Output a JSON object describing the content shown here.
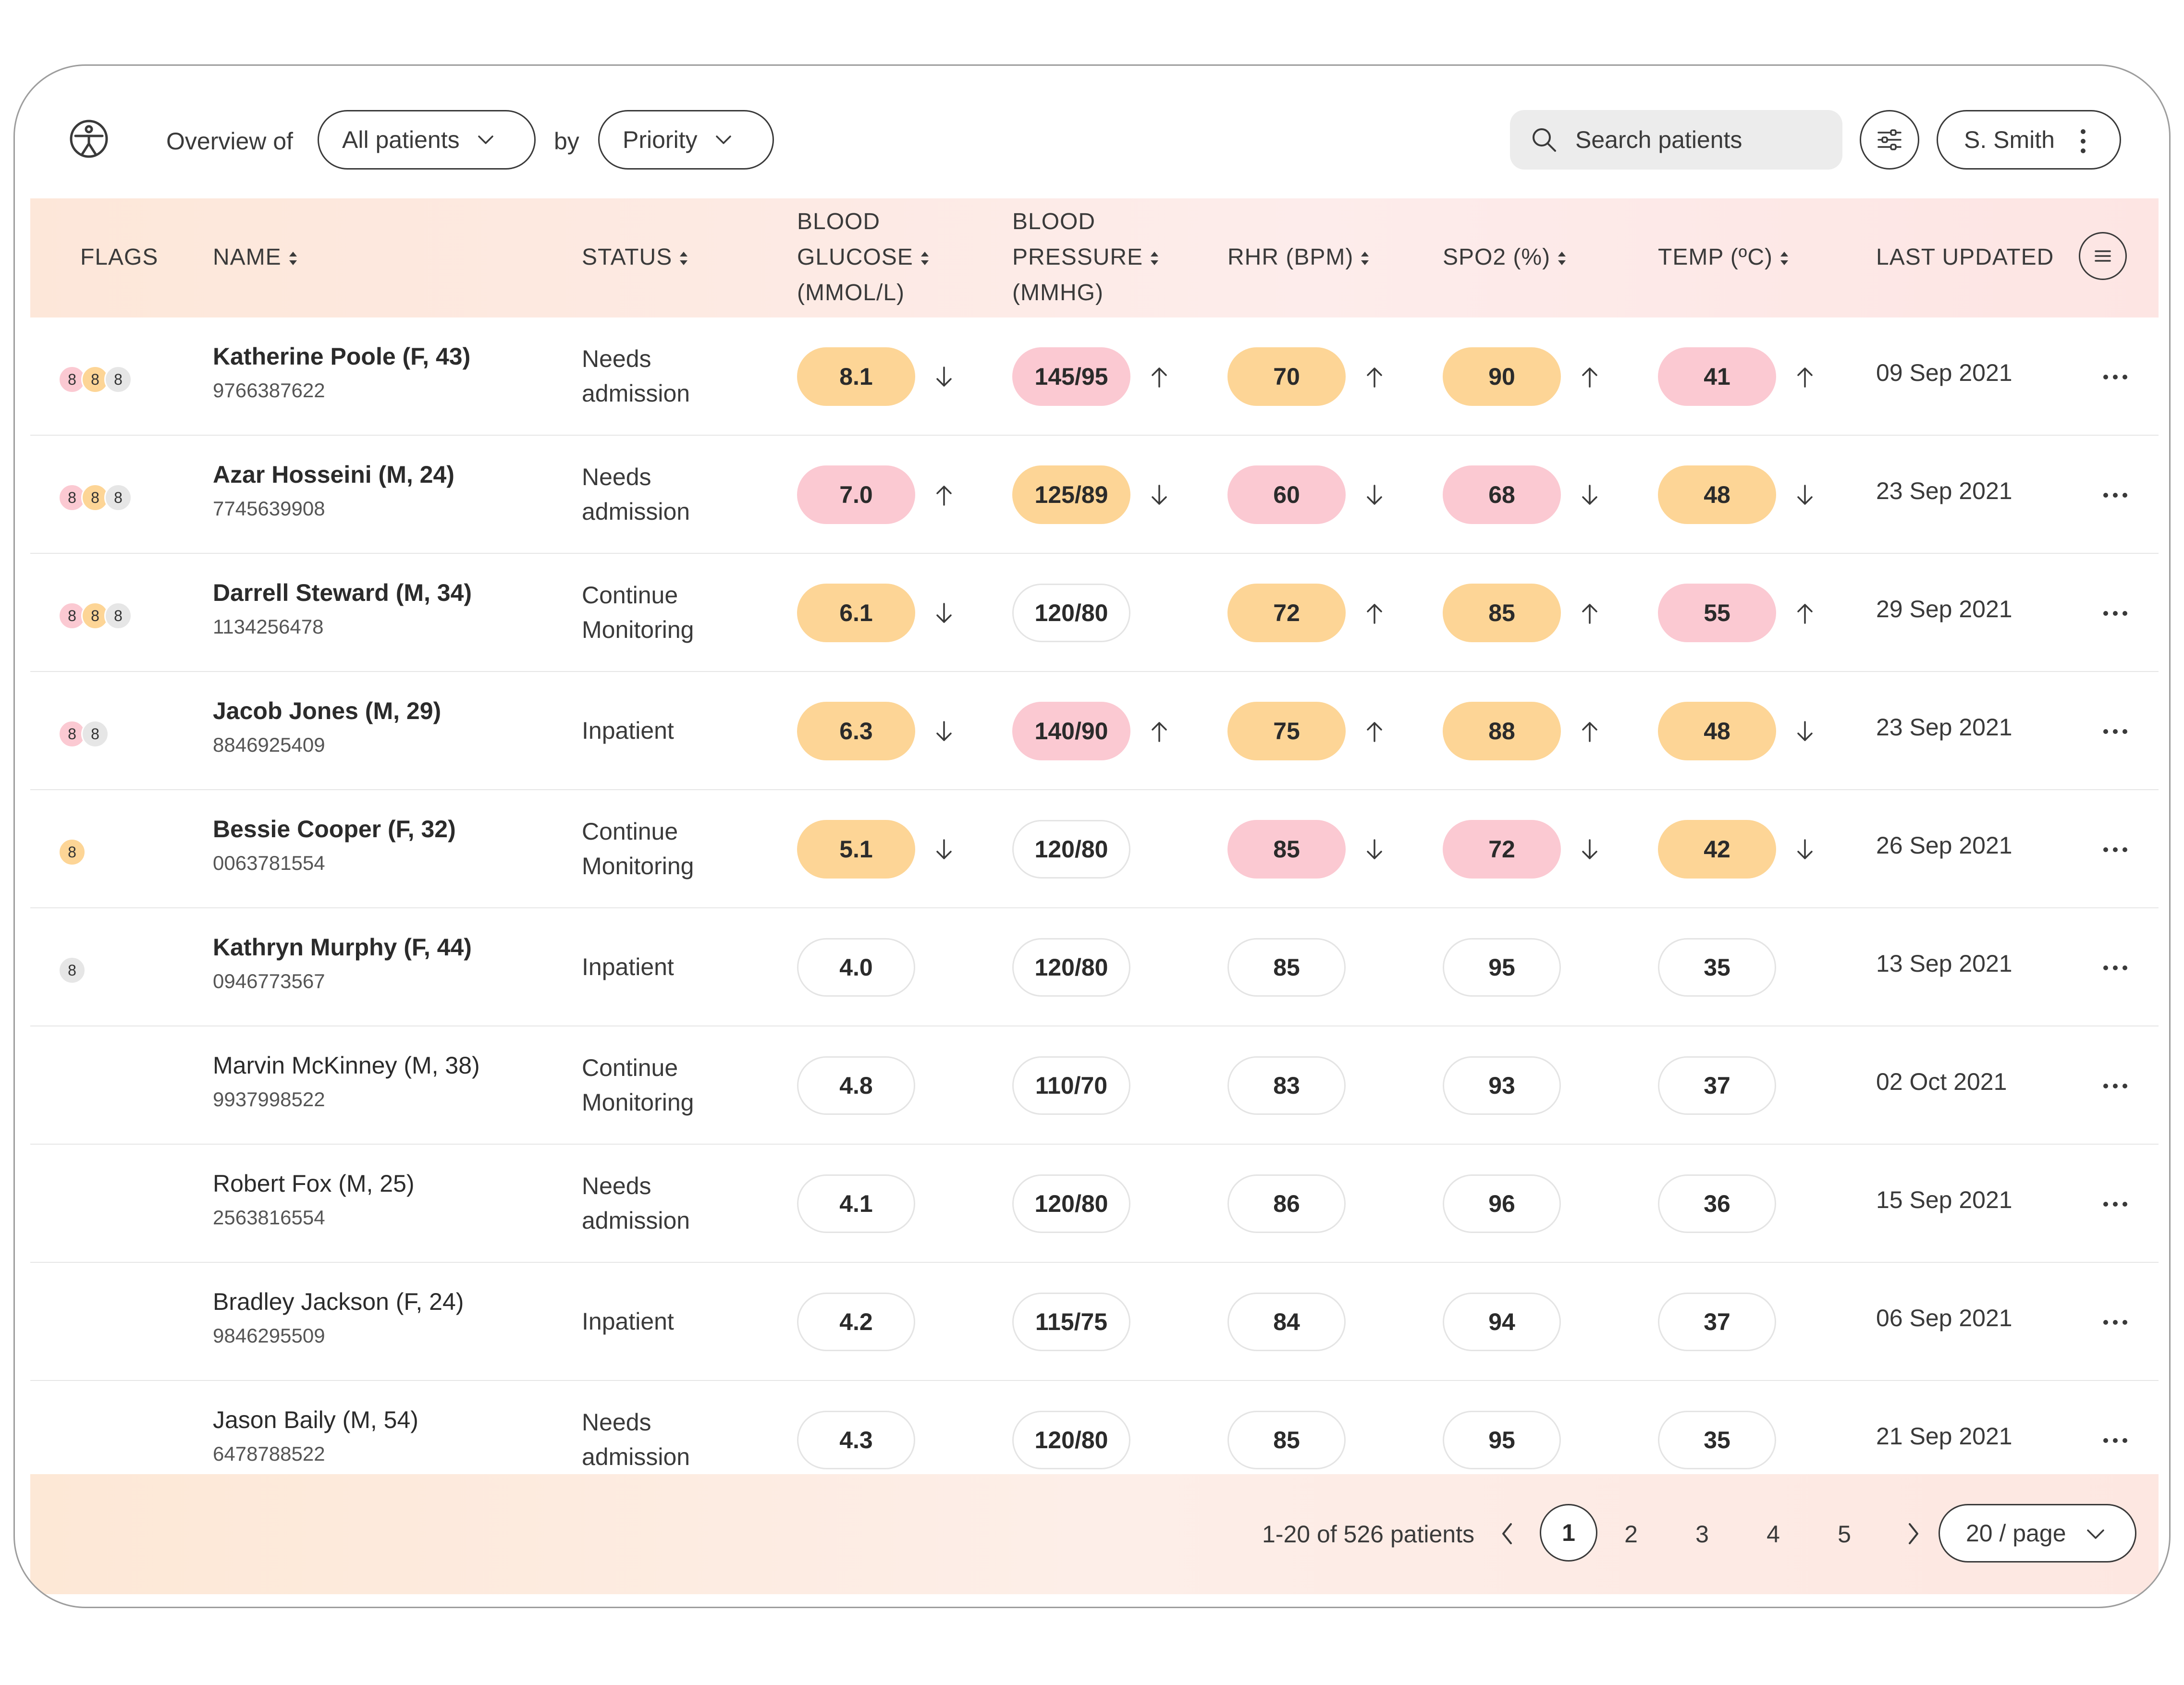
{
  "header": {
    "overview_label": "Overview of",
    "patients_filter": "All patients",
    "by_label": "by",
    "sort_filter": "Priority",
    "search_placeholder": "Search patients",
    "user_name": "S. Smith"
  },
  "columns": {
    "flags": "FLAGS",
    "name": "NAME",
    "status": "STATUS",
    "glucose": [
      "BLOOD",
      "GLUCOSE",
      "(MMOL/L)"
    ],
    "pressure": [
      "BLOOD",
      "PRESSURE",
      "(MMHG)"
    ],
    "rhr": "RHR (BPM)",
    "spo2": "SPO2 (%)",
    "temp": "TEMP (ºC)",
    "updated": "LAST UPDATED"
  },
  "rows": [
    {
      "flags": [
        {
          "color": "pink",
          "n": "8"
        },
        {
          "color": "yellow",
          "n": "8"
        },
        {
          "color": "grey",
          "n": "8"
        }
      ],
      "name": "Katherine Poole (F, 43)",
      "bold": true,
      "id": "9766387622",
      "status": [
        "Needs",
        "admission"
      ],
      "glucose": {
        "v": "8.1",
        "c": "yellow",
        "t": "down"
      },
      "bp": {
        "v": "145/95",
        "c": "pink",
        "t": "up"
      },
      "rhr": {
        "v": "70",
        "c": "yellow",
        "t": "up"
      },
      "spo2": {
        "v": "90",
        "c": "yellow",
        "t": "up"
      },
      "temp": {
        "v": "41",
        "c": "pink",
        "t": "up"
      },
      "updated": "09 Sep 2021"
    },
    {
      "flags": [
        {
          "color": "pink",
          "n": "8"
        },
        {
          "color": "yellow",
          "n": "8"
        },
        {
          "color": "grey",
          "n": "8"
        }
      ],
      "name": "Azar Hosseini (M, 24)",
      "bold": true,
      "id": "7745639908",
      "status": [
        "Needs",
        "admission"
      ],
      "glucose": {
        "v": "7.0",
        "c": "pink",
        "t": "up"
      },
      "bp": {
        "v": "125/89",
        "c": "yellow",
        "t": "down"
      },
      "rhr": {
        "v": "60",
        "c": "pink",
        "t": "down"
      },
      "spo2": {
        "v": "68",
        "c": "pink",
        "t": "down"
      },
      "temp": {
        "v": "48",
        "c": "yellow",
        "t": "down"
      },
      "updated": "23 Sep 2021"
    },
    {
      "flags": [
        {
          "color": "pink",
          "n": "8"
        },
        {
          "color": "yellow",
          "n": "8"
        },
        {
          "color": "grey",
          "n": "8"
        }
      ],
      "name": "Darrell Steward (M, 34)",
      "bold": true,
      "id": "1134256478",
      "status": [
        "Continue",
        "Monitoring"
      ],
      "glucose": {
        "v": "6.1",
        "c": "yellow",
        "t": "down"
      },
      "bp": {
        "v": "120/80",
        "c": "plain",
        "t": ""
      },
      "rhr": {
        "v": "72",
        "c": "yellow",
        "t": "up"
      },
      "spo2": {
        "v": "85",
        "c": "yellow",
        "t": "up"
      },
      "temp": {
        "v": "55",
        "c": "pink",
        "t": "up"
      },
      "updated": "29 Sep 2021"
    },
    {
      "flags": [
        {
          "color": "pink",
          "n": "8"
        },
        {
          "color": "grey",
          "n": "8"
        }
      ],
      "name": "Jacob Jones (M, 29)",
      "bold": true,
      "id": "8846925409",
      "status": [
        "Inpatient"
      ],
      "glucose": {
        "v": "6.3",
        "c": "yellow",
        "t": "down"
      },
      "bp": {
        "v": "140/90",
        "c": "pink",
        "t": "up"
      },
      "rhr": {
        "v": "75",
        "c": "yellow",
        "t": "up"
      },
      "spo2": {
        "v": "88",
        "c": "yellow",
        "t": "up"
      },
      "temp": {
        "v": "48",
        "c": "yellow",
        "t": "down"
      },
      "updated": "23 Sep 2021"
    },
    {
      "flags": [
        {
          "color": "yellow",
          "n": "8"
        }
      ],
      "name": "Bessie Cooper (F, 32)",
      "bold": true,
      "id": "0063781554",
      "status": [
        "Continue",
        "Monitoring"
      ],
      "glucose": {
        "v": "5.1",
        "c": "yellow",
        "t": "down"
      },
      "bp": {
        "v": "120/80",
        "c": "plain",
        "t": ""
      },
      "rhr": {
        "v": "85",
        "c": "pink",
        "t": "down"
      },
      "spo2": {
        "v": "72",
        "c": "pink",
        "t": "down"
      },
      "temp": {
        "v": "42",
        "c": "yellow",
        "t": "down"
      },
      "updated": "26 Sep 2021"
    },
    {
      "flags": [
        {
          "color": "grey",
          "n": "8"
        }
      ],
      "name": "Kathryn Murphy (F, 44)",
      "bold": true,
      "id": "0946773567",
      "status": [
        "Inpatient"
      ],
      "glucose": {
        "v": "4.0",
        "c": "plain",
        "t": ""
      },
      "bp": {
        "v": "120/80",
        "c": "plain",
        "t": ""
      },
      "rhr": {
        "v": "85",
        "c": "plain",
        "t": ""
      },
      "spo2": {
        "v": "95",
        "c": "plain",
        "t": ""
      },
      "temp": {
        "v": "35",
        "c": "plain",
        "t": ""
      },
      "updated": "13 Sep 2021"
    },
    {
      "flags": [],
      "name": "Marvin McKinney (M, 38)",
      "bold": false,
      "id": "9937998522",
      "status": [
        "Continue",
        "Monitoring"
      ],
      "glucose": {
        "v": "4.8",
        "c": "plain",
        "t": ""
      },
      "bp": {
        "v": "110/70",
        "c": "plain",
        "t": ""
      },
      "rhr": {
        "v": "83",
        "c": "plain",
        "t": ""
      },
      "spo2": {
        "v": "93",
        "c": "plain",
        "t": ""
      },
      "temp": {
        "v": "37",
        "c": "plain",
        "t": ""
      },
      "updated": "02 Oct 2021"
    },
    {
      "flags": [],
      "name": "Robert Fox (M, 25)",
      "bold": false,
      "id": "2563816554",
      "status": [
        "Needs",
        "admission"
      ],
      "glucose": {
        "v": "4.1",
        "c": "plain",
        "t": ""
      },
      "bp": {
        "v": "120/80",
        "c": "plain",
        "t": ""
      },
      "rhr": {
        "v": "86",
        "c": "plain",
        "t": ""
      },
      "spo2": {
        "v": "96",
        "c": "plain",
        "t": ""
      },
      "temp": {
        "v": "36",
        "c": "plain",
        "t": ""
      },
      "updated": "15 Sep 2021"
    },
    {
      "flags": [],
      "name": "Bradley Jackson (F, 24)",
      "bold": false,
      "id": "9846295509",
      "status": [
        "Inpatient"
      ],
      "glucose": {
        "v": "4.2",
        "c": "plain",
        "t": ""
      },
      "bp": {
        "v": "115/75",
        "c": "plain",
        "t": ""
      },
      "rhr": {
        "v": "84",
        "c": "plain",
        "t": ""
      },
      "spo2": {
        "v": "94",
        "c": "plain",
        "t": ""
      },
      "temp": {
        "v": "37",
        "c": "plain",
        "t": ""
      },
      "updated": "06 Sep 2021"
    },
    {
      "flags": [],
      "name": "Jason Baily (M, 54)",
      "bold": false,
      "id": "6478788522",
      "status": [
        "Needs",
        "admission"
      ],
      "glucose": {
        "v": "4.3",
        "c": "plain",
        "t": ""
      },
      "bp": {
        "v": "120/80",
        "c": "plain",
        "t": ""
      },
      "rhr": {
        "v": "85",
        "c": "plain",
        "t": ""
      },
      "spo2": {
        "v": "95",
        "c": "plain",
        "t": ""
      },
      "temp": {
        "v": "35",
        "c": "plain",
        "t": ""
      },
      "updated": "21 Sep 2021"
    }
  ],
  "pagination": {
    "info": "1-20 of 526 patients",
    "current": "1",
    "pages": [
      "2",
      "3",
      "4",
      "5"
    ],
    "page_size": "20 / page"
  },
  "colors": {
    "yellow": "#fdd596",
    "pink": "#fbc9d2",
    "grey": "#e6e6e6",
    "header_bg": "#fde7d9"
  }
}
